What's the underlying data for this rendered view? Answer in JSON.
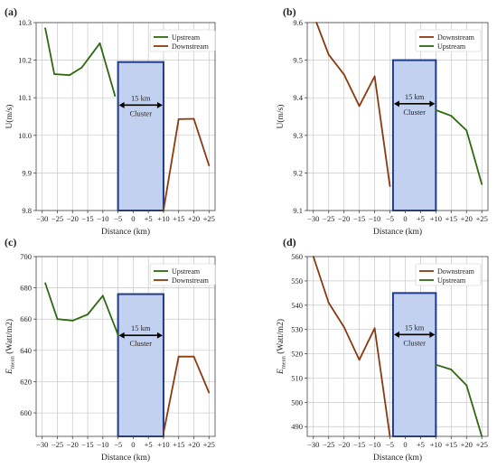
{
  "chart_data": [
    {
      "type": "line",
      "panel_label": "(a)",
      "xlabel": "Distance (km)",
      "ylabel": "U(m/s)",
      "xlim": [
        -32,
        27
      ],
      "ylim": [
        9.8,
        10.3
      ],
      "xticks": [
        -30,
        -25,
        -20,
        -15,
        -10,
        -5,
        0,
        5,
        10,
        15,
        20,
        25
      ],
      "xtick_labels": [
        "−30",
        "−25",
        "−20",
        "−15",
        "−10",
        "−5",
        "0",
        "+5",
        "+10",
        "+15",
        "+20",
        "+25"
      ],
      "yticks": [
        9.8,
        9.9,
        10.0,
        10.1,
        10.2,
        10.3
      ],
      "ytick_labels": [
        "9.8",
        "9.9",
        "10.0",
        "10.1",
        "10.2",
        "10.3"
      ],
      "grid": true,
      "legend_position": "top-right",
      "series": [
        {
          "name": "Upstream",
          "color": "#2d6a0f",
          "x": [
            -29,
            -26,
            -21,
            -17,
            -11,
            -6
          ],
          "y": [
            10.285,
            10.163,
            10.16,
            10.18,
            10.245,
            10.105
          ]
        },
        {
          "name": "Downstream",
          "color": "#8b3a0f",
          "x": [
            10,
            15,
            20,
            25
          ],
          "y": [
            9.8,
            10.043,
            10.044,
            9.92
          ]
        }
      ],
      "cluster_box": {
        "x": [
          -5,
          10
        ],
        "y": [
          9.8,
          10.195
        ],
        "fill": "#c3d1f0",
        "stroke": "#1f3a8a"
      },
      "annotations": {
        "distance": "15 km",
        "name": "Cluster"
      }
    },
    {
      "type": "line",
      "panel_label": "(b)",
      "xlabel": "Distance (km)",
      "ylabel": "U(m/s)",
      "xlim": [
        -32,
        27
      ],
      "ylim": [
        9.1,
        9.6
      ],
      "xticks": [
        -30,
        -25,
        -20,
        -15,
        -10,
        -5,
        0,
        5,
        10,
        15,
        20,
        25
      ],
      "xtick_labels": [
        "−30",
        "−25",
        "−20",
        "−15",
        "−10",
        "−5",
        "0",
        "+5",
        "+10",
        "+15",
        "+20",
        "+25"
      ],
      "yticks": [
        9.1,
        9.2,
        9.3,
        9.4,
        9.5,
        9.6
      ],
      "ytick_labels": [
        "9.1",
        "9.2",
        "9.3",
        "9.4",
        "9.5",
        "9.6"
      ],
      "grid": true,
      "legend_position": "top-right",
      "series": [
        {
          "name": "Downstream",
          "color": "#8b3a0f",
          "x": [
            -29,
            -25,
            -20,
            -15,
            -10,
            -5
          ],
          "y": [
            9.6,
            9.515,
            9.462,
            9.378,
            9.457,
            9.165
          ]
        },
        {
          "name": "Upstream",
          "color": "#2d6a0f",
          "x": [
            10,
            15,
            20,
            25
          ],
          "y": [
            9.367,
            9.352,
            9.313,
            9.17
          ]
        }
      ],
      "cluster_box": {
        "x": [
          -4,
          10
        ],
        "y": [
          9.1,
          9.5
        ],
        "fill": "#c3d1f0",
        "stroke": "#1f3a8a"
      },
      "annotations": {
        "distance": "15 km",
        "name": "Cluster"
      }
    },
    {
      "type": "line",
      "panel_label": "(c)",
      "xlabel": "Distance (km)",
      "ylabel": "Emean (Watt/m2)",
      "ylabel_main": "E",
      "ylabel_sub": "mean",
      "ylabel_rest": " (Watt/m2)",
      "xlim": [
        -32,
        27
      ],
      "ylim": [
        585,
        700
      ],
      "xticks": [
        -30,
        -25,
        -20,
        -15,
        -10,
        -5,
        0,
        5,
        10,
        15,
        20,
        25
      ],
      "xtick_labels": [
        "−30",
        "−25",
        "−20",
        "−15",
        "−10",
        "−5",
        "0",
        "+5",
        "+10",
        "+15",
        "+20",
        "+25"
      ],
      "yticks": [
        600,
        620,
        640,
        660,
        680,
        700
      ],
      "ytick_labels": [
        "600",
        "620",
        "640",
        "660",
        "680",
        "700"
      ],
      "grid": true,
      "legend_position": "top-right",
      "series": [
        {
          "name": "Upstream",
          "color": "#2d6a0f",
          "x": [
            -29,
            -25,
            -20,
            -15,
            -10,
            -5
          ],
          "y": [
            683,
            660,
            659,
            663,
            675,
            650
          ]
        },
        {
          "name": "Downstream",
          "color": "#8b3a0f",
          "x": [
            10,
            15,
            20,
            25
          ],
          "y": [
            587,
            636,
            636,
            613
          ]
        }
      ],
      "cluster_box": {
        "x": [
          -5,
          10
        ],
        "y": [
          585,
          676
        ],
        "fill": "#c3d1f0",
        "stroke": "#1f3a8a"
      },
      "annotations": {
        "distance": "15 km",
        "name": "Cluster"
      }
    },
    {
      "type": "line",
      "panel_label": "(d)",
      "xlabel": "Distance (km)",
      "ylabel": "Emean (Watt/m2)",
      "ylabel_main": "E",
      "ylabel_sub": "mean",
      "ylabel_rest": " (Watt/m2)",
      "xlim": [
        -32,
        27
      ],
      "ylim": [
        486,
        560
      ],
      "xticks": [
        -30,
        -25,
        -20,
        -15,
        -10,
        -5,
        0,
        5,
        10,
        15,
        20,
        25
      ],
      "xtick_labels": [
        "−30",
        "−25",
        "−20",
        "−15",
        "−10",
        "−5",
        "0",
        "+5",
        "+10",
        "+15",
        "+20",
        "+25"
      ],
      "yticks": [
        490,
        500,
        510,
        520,
        530,
        540,
        550,
        560
      ],
      "ytick_labels": [
        "490",
        "500",
        "510",
        "520",
        "530",
        "540",
        "550",
        "560"
      ],
      "grid": true,
      "legend_position": "top-right",
      "series": [
        {
          "name": "Downstream",
          "color": "#8b3a0f",
          "x": [
            -30,
            -25,
            -20,
            -15,
            -10,
            -5
          ],
          "y": [
            560,
            541,
            531,
            517.5,
            530.5,
            486
          ]
        },
        {
          "name": "Upstream",
          "color": "#2d6a0f",
          "x": [
            10,
            15,
            20,
            25
          ],
          "y": [
            515.5,
            513.5,
            507,
            486
          ]
        }
      ],
      "cluster_box": {
        "x": [
          -4,
          10
        ],
        "y": [
          486,
          545
        ],
        "fill": "#c3d1f0",
        "stroke": "#1f3a8a"
      },
      "annotations": {
        "distance": "15 km",
        "name": "Cluster"
      }
    }
  ]
}
